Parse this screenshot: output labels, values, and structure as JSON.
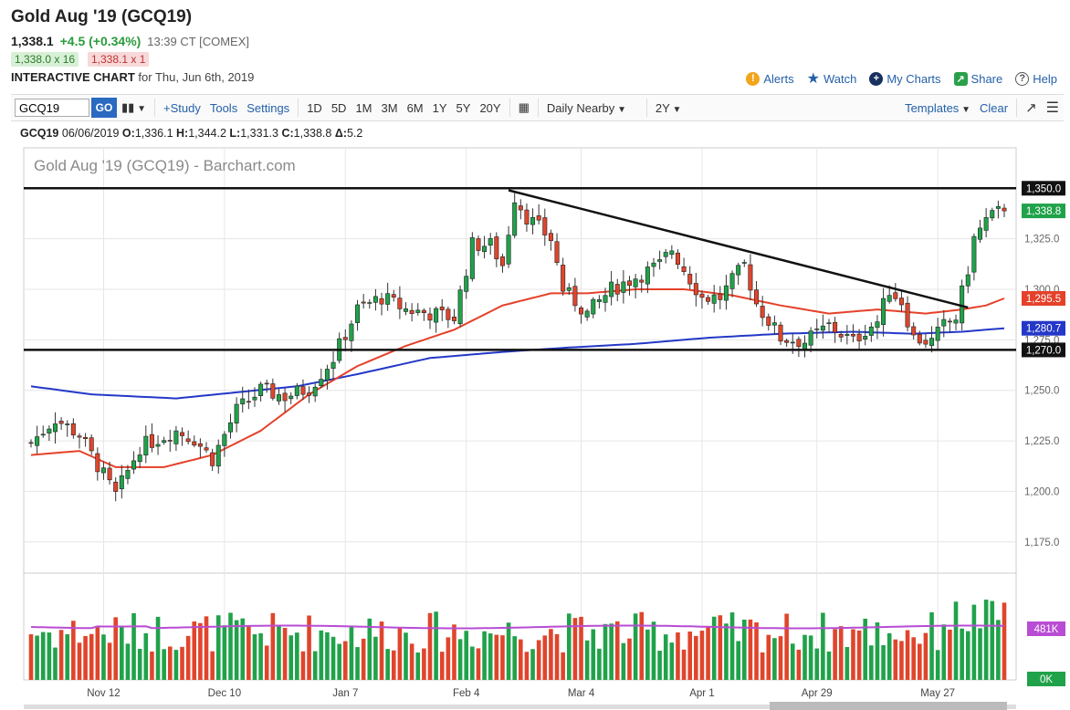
{
  "header": {
    "title": "Gold Aug '19 (GCQ19)",
    "last_price": "1,338.1",
    "change": "+4.5 (+0.34%)",
    "quote_time": "13:39 CT [COMEX]",
    "bid": "1,338.0 x 16",
    "ask": "1,338.1 x 1",
    "interactive_label": "INTERACTIVE CHART",
    "interactive_date": "for Thu, Jun 6th, 2019"
  },
  "top_links": {
    "alerts": "Alerts",
    "watch": "Watch",
    "my_charts": "My Charts",
    "share": "Share",
    "help": "Help"
  },
  "toolbar": {
    "symbol_value": "GCQ19",
    "go": "GO",
    "study": "+Study",
    "tools": "Tools",
    "settings": "Settings",
    "periods": [
      "1D",
      "5D",
      "1M",
      "3M",
      "6M",
      "1Y",
      "5Y",
      "20Y"
    ],
    "nearby": "Daily Nearby",
    "range": "2Y",
    "templates": "Templates",
    "clear": "Clear"
  },
  "ohlc": {
    "symbol": "GCQ19",
    "date": "06/06/2019",
    "o_label": "O:",
    "o": "1,336.1",
    "h_label": "H:",
    "h": "1,344.2",
    "l_label": "L:",
    "l": "1,331.3",
    "c_label": "C:",
    "c": "1,338.8",
    "d_label": "Δ:",
    "d": "5.2"
  },
  "colors": {
    "up": "#20a24a",
    "down": "#e0452c",
    "ma_red": "#e5412a",
    "ma_blue": "#2438c8",
    "volume_avg": "#b84cd4",
    "accent_blue": "#2460a8"
  },
  "chart_data": {
    "type": "candlestick",
    "title": "Gold Aug '19 (GCQ19) - Barchart.com",
    "x_tick_labels": [
      "Nov 12",
      "Dec 10",
      "Jan 7",
      "Feb 4",
      "Mar 4",
      "Apr 1",
      "Apr 29",
      "May 27"
    ],
    "y_ticks": [
      "1,175.0",
      "1,200.0",
      "1,225.0",
      "1,250.0",
      "1,275.0",
      "1,300.0",
      "1,325.0"
    ],
    "ylim": [
      1160,
      1370
    ],
    "grid": true,
    "horizontal_levels": [
      {
        "value": 1350.0,
        "label": "1,350.0"
      },
      {
        "value": 1270.0,
        "label": "1,270.0"
      }
    ],
    "price_tags": [
      {
        "name": "last",
        "value": 1338.8,
        "label": "1,338.8"
      },
      {
        "name": "red-ma",
        "value": 1295.5,
        "label": "1,295.5"
      },
      {
        "name": "blue-ma",
        "value": 1280.7,
        "label": "1,280.7"
      }
    ],
    "trendline": {
      "from_index": 79,
      "from_price": 1349,
      "to_index": 155,
      "to_price": 1291
    },
    "n_bars": 162,
    "anchors": [
      [
        0,
        1224
      ],
      [
        4,
        1236
      ],
      [
        8,
        1228
      ],
      [
        12,
        1208
      ],
      [
        14,
        1198
      ],
      [
        18,
        1222
      ],
      [
        24,
        1230
      ],
      [
        27,
        1226
      ],
      [
        30,
        1216
      ],
      [
        34,
        1240
      ],
      [
        38,
        1250
      ],
      [
        42,
        1247
      ],
      [
        46,
        1251
      ],
      [
        50,
        1266
      ],
      [
        54,
        1290
      ],
      [
        58,
        1296
      ],
      [
        62,
        1290
      ],
      [
        66,
        1288
      ],
      [
        70,
        1286
      ],
      [
        73,
        1322
      ],
      [
        76,
        1322
      ],
      [
        78,
        1312
      ],
      [
        80,
        1346
      ],
      [
        82,
        1336
      ],
      [
        86,
        1325
      ],
      [
        88,
        1300
      ],
      [
        92,
        1288
      ],
      [
        96,
        1300
      ],
      [
        100,
        1306
      ],
      [
        104,
        1312
      ],
      [
        106,
        1320
      ],
      [
        108,
        1310
      ],
      [
        111,
        1296
      ],
      [
        114,
        1296
      ],
      [
        116,
        1304
      ],
      [
        118,
        1312
      ],
      [
        120,
        1293
      ],
      [
        124,
        1276
      ],
      [
        128,
        1274
      ],
      [
        132,
        1282
      ],
      [
        134,
        1278
      ],
      [
        136,
        1274
      ],
      [
        138,
        1280
      ],
      [
        140,
        1284
      ],
      [
        142,
        1300
      ],
      [
        144,
        1294
      ],
      [
        146,
        1276
      ],
      [
        149,
        1274
      ],
      [
        151,
        1282
      ],
      [
        153,
        1286
      ],
      [
        155,
        1310
      ],
      [
        156,
        1325
      ],
      [
        158,
        1334
      ],
      [
        160,
        1338
      ],
      [
        161,
        1338.8
      ]
    ],
    "red_ma": [
      [
        0,
        1218
      ],
      [
        8,
        1220
      ],
      [
        14,
        1212
      ],
      [
        22,
        1212
      ],
      [
        30,
        1218
      ],
      [
        38,
        1230
      ],
      [
        46,
        1248
      ],
      [
        54,
        1262
      ],
      [
        62,
        1272
      ],
      [
        70,
        1280
      ],
      [
        78,
        1292
      ],
      [
        86,
        1298
      ],
      [
        92,
        1298
      ],
      [
        100,
        1300
      ],
      [
        108,
        1300
      ],
      [
        116,
        1297
      ],
      [
        124,
        1292
      ],
      [
        132,
        1288
      ],
      [
        140,
        1290
      ],
      [
        148,
        1288
      ],
      [
        154,
        1290
      ],
      [
        158,
        1292
      ],
      [
        161,
        1295.5
      ]
    ],
    "blue_ma": [
      [
        0,
        1252
      ],
      [
        10,
        1248
      ],
      [
        24,
        1246
      ],
      [
        34,
        1249
      ],
      [
        44,
        1252
      ],
      [
        54,
        1258
      ],
      [
        66,
        1266
      ],
      [
        78,
        1269
      ],
      [
        88,
        1271
      ],
      [
        100,
        1273
      ],
      [
        112,
        1276
      ],
      [
        124,
        1278
      ],
      [
        136,
        1279
      ],
      [
        146,
        1278
      ],
      [
        154,
        1279
      ],
      [
        161,
        1280.7
      ]
    ],
    "volume": {
      "tags": [
        {
          "name": "volume",
          "label": "481K"
        },
        {
          "name": "open-interest",
          "label": "0K"
        }
      ],
      "max": 1.0
    }
  }
}
